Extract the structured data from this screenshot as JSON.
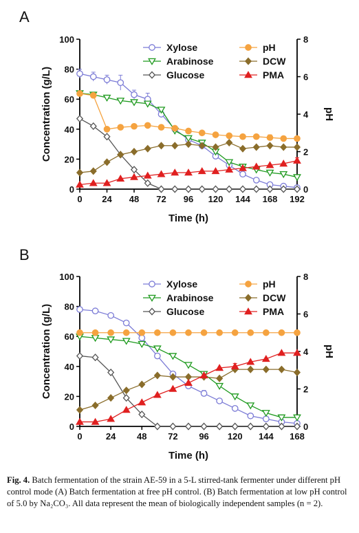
{
  "caption": {
    "label": "Fig. 4.",
    "text": "Batch fermentation of the strain AE-59 in a 5-L stirred-tank fermenter under different pH control mode (A) Batch fermentation at free pH control. (B) Batch fermentation at low pH control of 5.0 by Na₂CO₃. All data represent the mean of biologically independent samples (n = 2)."
  },
  "chart_data": [
    {
      "panel": "A",
      "type": "line",
      "xlabel": "Time (h)",
      "ylabel": "Concentration (g/L)",
      "y2label": "pH",
      "xlim": [
        0,
        192
      ],
      "ylim": [
        0,
        100
      ],
      "y2lim": [
        0,
        8
      ],
      "xticks": [
        0,
        24,
        48,
        72,
        96,
        120,
        144,
        168,
        192
      ],
      "yticks": [
        0,
        20,
        40,
        60,
        80,
        100
      ],
      "y2ticks": [
        0,
        2,
        4,
        6,
        8
      ],
      "legend_position": "top-right",
      "series": [
        {
          "name": "Xylose",
          "axis": "left",
          "marker": "circle-open",
          "color": "#7b7bd6",
          "x": [
            0,
            12,
            24,
            36,
            48,
            60,
            72,
            84,
            96,
            108,
            120,
            132,
            144,
            156,
            168,
            180,
            192
          ],
          "y": [
            77,
            75,
            73,
            71,
            63,
            60,
            50,
            40,
            33,
            29,
            22,
            16,
            10,
            6,
            3,
            2,
            1
          ],
          "err": [
            3,
            3,
            3,
            5,
            3,
            4,
            2,
            1,
            1,
            2,
            1,
            1,
            1,
            1,
            1,
            1,
            1
          ]
        },
        {
          "name": "Arabinose",
          "axis": "left",
          "marker": "triangle-down-open",
          "color": "#1e9a1e",
          "x": [
            0,
            12,
            24,
            36,
            48,
            60,
            72,
            84,
            96,
            108,
            120,
            132,
            144,
            156,
            168,
            180,
            192
          ],
          "y": [
            64,
            63,
            61,
            59,
            58,
            57,
            53,
            39,
            34,
            31,
            25,
            18,
            15,
            13,
            11,
            10,
            8
          ],
          "err": [
            1,
            1,
            1,
            1,
            1,
            1,
            1,
            1,
            1,
            1,
            1,
            1,
            1,
            1,
            1,
            1,
            1
          ]
        },
        {
          "name": "Glucose",
          "axis": "left",
          "marker": "diamond-open",
          "color": "#555555",
          "x": [
            0,
            12,
            24,
            36,
            48,
            60,
            72,
            84,
            96,
            108,
            120,
            132,
            144,
            156,
            168,
            180,
            192
          ],
          "y": [
            47,
            42,
            35,
            23,
            13,
            4,
            0,
            0,
            0,
            0,
            0,
            0,
            0,
            0,
            0,
            0,
            0
          ]
        },
        {
          "name": "pH",
          "axis": "right",
          "marker": "circle-filled",
          "color": "#f5a340",
          "x": [
            0,
            12,
            24,
            36,
            48,
            60,
            72,
            84,
            96,
            108,
            120,
            132,
            144,
            156,
            168,
            180,
            192
          ],
          "y": [
            5.1,
            5.0,
            3.2,
            3.3,
            3.35,
            3.4,
            3.3,
            3.25,
            3.1,
            3.0,
            2.9,
            2.85,
            2.8,
            2.8,
            2.75,
            2.7,
            2.7
          ],
          "err": [
            0.05,
            0.05,
            0.05,
            0.05,
            0.05,
            0.05,
            0.05,
            0.05,
            0.1,
            0.1,
            0.1,
            0.1,
            0.1,
            0.1,
            0.15,
            0.1,
            0.1
          ]
        },
        {
          "name": "DCW",
          "axis": "left",
          "marker": "diamond-filled",
          "color": "#8a6d2b",
          "x": [
            0,
            12,
            24,
            36,
            48,
            60,
            72,
            84,
            96,
            108,
            120,
            132,
            144,
            156,
            168,
            180,
            192
          ],
          "y": [
            11,
            12,
            18,
            23,
            25,
            27,
            29,
            29,
            30,
            29,
            28,
            31,
            27,
            28,
            29,
            28,
            28
          ]
        },
        {
          "name": "PMA",
          "axis": "left",
          "marker": "triangle-up-filled",
          "color": "#e02020",
          "x": [
            0,
            12,
            24,
            36,
            48,
            60,
            72,
            84,
            96,
            108,
            120,
            132,
            144,
            156,
            168,
            180,
            192
          ],
          "y": [
            3,
            4,
            4,
            7,
            8,
            9,
            10,
            11,
            11,
            12,
            12,
            13,
            14,
            15,
            16,
            17,
            19
          ],
          "err": [
            0,
            0,
            0,
            0,
            0,
            0,
            0,
            0,
            0,
            0,
            0,
            0,
            0,
            0,
            0,
            0,
            2
          ]
        }
      ]
    },
    {
      "panel": "B",
      "type": "line",
      "xlabel": "Time (h)",
      "ylabel": "Concentration (g/L)",
      "y2label": "pH",
      "xlim": [
        0,
        168
      ],
      "ylim": [
        0,
        100
      ],
      "y2lim": [
        0,
        8
      ],
      "xticks": [
        0,
        24,
        48,
        72,
        96,
        120,
        144,
        168
      ],
      "yticks": [
        0,
        20,
        40,
        60,
        80,
        100
      ],
      "y2ticks": [
        0,
        2,
        4,
        6,
        8
      ],
      "legend_position": "top-right",
      "series": [
        {
          "name": "Xylose",
          "axis": "left",
          "marker": "circle-open",
          "color": "#7b7bd6",
          "x": [
            0,
            12,
            24,
            36,
            48,
            60,
            72,
            84,
            96,
            108,
            120,
            132,
            144,
            156,
            168
          ],
          "y": [
            78,
            77,
            74,
            69,
            59,
            47,
            35,
            27,
            22,
            17,
            12,
            7,
            5,
            3,
            2
          ],
          "err": [
            1,
            1,
            1,
            1,
            1,
            1,
            1,
            1,
            2,
            1,
            1,
            1,
            1,
            1,
            1
          ]
        },
        {
          "name": "Arabinose",
          "axis": "left",
          "marker": "triangle-down-open",
          "color": "#1e9a1e",
          "x": [
            0,
            12,
            24,
            36,
            48,
            60,
            72,
            84,
            96,
            108,
            120,
            132,
            144,
            156,
            168
          ],
          "y": [
            60,
            59,
            58,
            57,
            55,
            52,
            47,
            41,
            35,
            27,
            20,
            14,
            9,
            6,
            6
          ],
          "err": [
            1,
            1,
            1,
            1,
            1,
            1,
            1,
            1,
            1,
            1,
            1,
            1,
            1,
            1,
            1
          ]
        },
        {
          "name": "Glucose",
          "axis": "left",
          "marker": "diamond-open",
          "color": "#555555",
          "x": [
            0,
            12,
            24,
            36,
            48,
            60,
            72,
            84,
            96,
            108,
            120,
            132,
            144,
            156,
            168
          ],
          "y": [
            47,
            46,
            36,
            19,
            8,
            0,
            0,
            0,
            0,
            0,
            0,
            0,
            0,
            0,
            0
          ]
        },
        {
          "name": "pH",
          "axis": "right",
          "marker": "circle-filled",
          "color": "#f5a340",
          "x": [
            0,
            12,
            24,
            36,
            48,
            60,
            72,
            84,
            96,
            108,
            120,
            132,
            144,
            156,
            168
          ],
          "y": [
            5.0,
            5.0,
            5.0,
            5.0,
            5.0,
            5.0,
            5.0,
            5.0,
            5.0,
            5.0,
            5.0,
            5.0,
            5.0,
            5.0,
            5.0
          ]
        },
        {
          "name": "DCW",
          "axis": "left",
          "marker": "diamond-filled",
          "color": "#8a6d2b",
          "x": [
            0,
            12,
            24,
            36,
            48,
            60,
            72,
            84,
            96,
            108,
            120,
            132,
            144,
            156,
            168
          ],
          "y": [
            11,
            14,
            19,
            24,
            28,
            34,
            33,
            33,
            33,
            32,
            38,
            38,
            38,
            38,
            36
          ]
        },
        {
          "name": "PMA",
          "axis": "left",
          "marker": "triangle-up-filled",
          "color": "#e02020",
          "x": [
            0,
            12,
            24,
            36,
            48,
            60,
            72,
            84,
            96,
            108,
            120,
            132,
            144,
            156,
            168
          ],
          "y": [
            3,
            3,
            5,
            11,
            16,
            21,
            25,
            29,
            34,
            39,
            40,
            43,
            45,
            49,
            49
          ],
          "err": [
            0,
            0,
            0,
            0,
            0,
            0,
            0,
            0,
            0,
            0,
            2,
            0,
            0,
            0,
            0
          ]
        }
      ]
    }
  ]
}
